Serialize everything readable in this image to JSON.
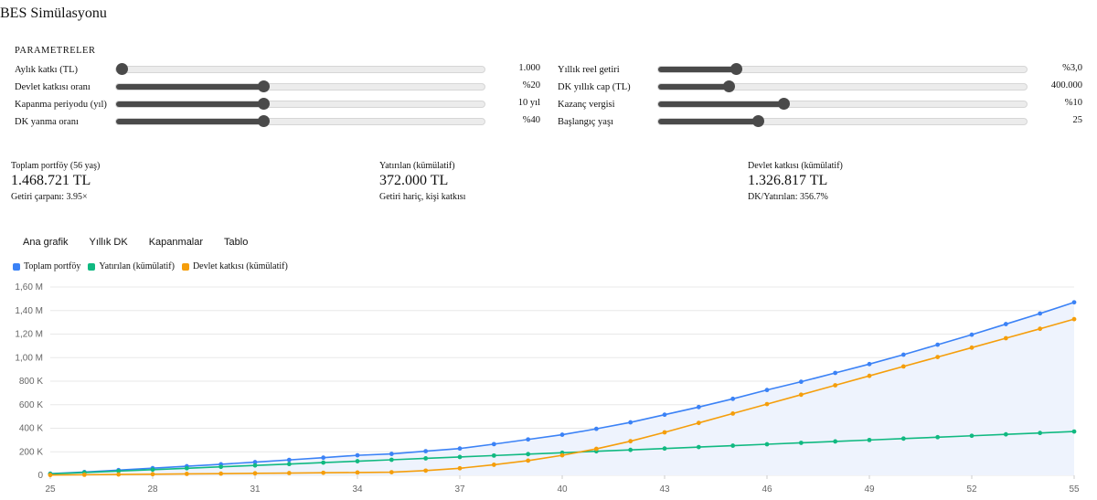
{
  "page": {
    "title": "BES Simülasyonu"
  },
  "params": {
    "heading": "PARAMETRELER",
    "left": [
      {
        "label": "Aylık katkı (TL)",
        "value": "1.000",
        "fraction": 0.0
      },
      {
        "label": "Devlet katkısı oranı",
        "value": "%20",
        "fraction": 0.4
      },
      {
        "label": "Kapanma periyodu (yıl)",
        "value": "10 yıl",
        "fraction": 0.4
      },
      {
        "label": "DK yanma oranı",
        "value": "%40",
        "fraction": 0.4
      }
    ],
    "right": [
      {
        "label": "Yıllık reel getiri",
        "value": "%3,0",
        "fraction": 0.21
      },
      {
        "label": "DK yıllık cap (TL)",
        "value": "400.000",
        "fraction": 0.19
      },
      {
        "label": "Kazanç vergisi",
        "value": "%10",
        "fraction": 0.34
      },
      {
        "label": "Başlangıç yaşı",
        "value": "25",
        "fraction": 0.27
      }
    ]
  },
  "stats": [
    {
      "label": "Toplam portföy (56 yaş)",
      "value": "1.468.721 TL",
      "sub": "Getiri çarpanı: 3.95×"
    },
    {
      "label": "Yatırılan (kümülatif)",
      "value": "372.000 TL",
      "sub": "Getiri hariç, kişi katkısı"
    },
    {
      "label": "Devlet katkısı (kümülatif)",
      "value": "1.326.817 TL",
      "sub": "DK/Yatırılan: 356.7%"
    }
  ],
  "tabs": [
    "Ana grafik",
    "Yıllık DK",
    "Kapanmalar",
    "Tablo"
  ],
  "colors": {
    "portfolio": "#3b82f6",
    "invested": "#10b981",
    "state": "#f59e0b",
    "area": "#eef3fd",
    "grid": "#e8e8e8"
  },
  "chart_data": {
    "type": "line",
    "x": [
      25,
      26,
      27,
      28,
      29,
      30,
      31,
      32,
      33,
      34,
      35,
      36,
      37,
      38,
      39,
      40,
      41,
      42,
      43,
      44,
      45,
      46,
      47,
      48,
      49,
      50,
      51,
      52,
      53,
      54,
      55
    ],
    "series": [
      {
        "name": "Toplam portföy",
        "values": [
          14000,
          28000,
          44000,
          61000,
          77000,
          94000,
          112000,
          131000,
          150000,
          170000,
          182000,
          205000,
          228000,
          265000,
          305000,
          345000,
          395000,
          450000,
          515000,
          580000,
          650000,
          725000,
          795000,
          870000,
          945000,
          1025000,
          1110000,
          1195000,
          1285000,
          1375000,
          1470000
        ]
      },
      {
        "name": "Yatırılan (kümülatif)",
        "values": [
          12000,
          24000,
          36000,
          48000,
          60000,
          72000,
          84000,
          96000,
          108000,
          120000,
          132000,
          144000,
          156000,
          168000,
          180000,
          192000,
          204000,
          216000,
          228000,
          240000,
          252000,
          264000,
          276000,
          288000,
          300000,
          312000,
          324000,
          336000,
          348000,
          360000,
          372000
        ]
      },
      {
        "name": "Devlet katkısı (kümülatif)",
        "values": [
          2400,
          4800,
          7200,
          9600,
          12000,
          14400,
          16800,
          19200,
          21600,
          24000,
          26400,
          40000,
          60000,
          90000,
          125000,
          170000,
          225000,
          290000,
          365000,
          445000,
          525000,
          605000,
          685000,
          765000,
          845000,
          925000,
          1005000,
          1085000,
          1165000,
          1245000,
          1327000
        ]
      }
    ],
    "ylim": [
      0,
      1600000
    ],
    "yticks": [
      0,
      200000,
      400000,
      600000,
      800000,
      1000000,
      1200000,
      1400000,
      1600000
    ],
    "ytick_labels": [
      "0",
      "200 K",
      "400 K",
      "600 K",
      "800 K",
      "1,00 M",
      "1,20 M",
      "1,40 M",
      "1,60 M"
    ],
    "xticks": [
      "25",
      "28",
      "31",
      "34",
      "37",
      "40",
      "43",
      "46",
      "49",
      "52",
      "55"
    ],
    "grid": true,
    "legend": "top-left"
  }
}
